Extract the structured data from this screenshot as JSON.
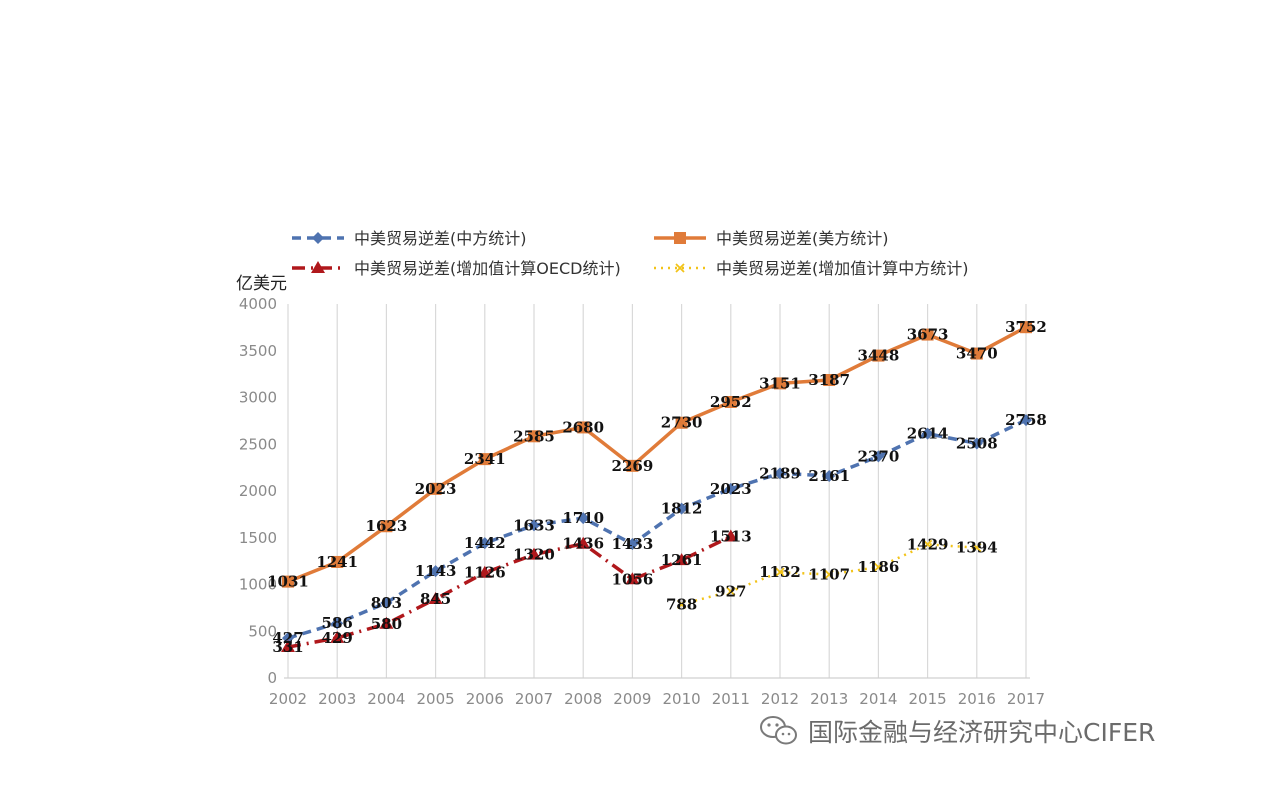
{
  "chart_data": {
    "type": "line",
    "ylabel": "亿美元",
    "ylim": [
      0,
      4000
    ],
    "yticks": [
      0,
      500,
      1000,
      1500,
      2000,
      2500,
      3000,
      3500,
      4000
    ],
    "x": [
      "2002",
      "2003",
      "2004",
      "2005",
      "2006",
      "2007",
      "2008",
      "2009",
      "2010",
      "2011",
      "2012",
      "2013",
      "2014",
      "2015",
      "2016",
      "2017"
    ],
    "grid": "vertical",
    "legend_position": "top",
    "series": [
      {
        "name": "中美贸易逆差(中方统计)",
        "color": "#4F73B0",
        "line_style": "dashed",
        "marker": "diamond",
        "values": [
          427,
          586,
          803,
          1143,
          1442,
          1633,
          1710,
          1433,
          1812,
          2023,
          2189,
          2161,
          2370,
          2614,
          2508,
          2758
        ]
      },
      {
        "name": "中美贸易逆差(美方统计)",
        "color": "#E07B39",
        "line_style": "solid",
        "marker": "square",
        "values": [
          1031,
          1241,
          1623,
          2023,
          2341,
          2585,
          2680,
          2269,
          2730,
          2952,
          3151,
          3187,
          3448,
          3673,
          3470,
          3752
        ]
      },
      {
        "name": "中美贸易逆差(增加值计算OECD统计)",
        "color": "#B0181C",
        "line_style": "dash-dot",
        "marker": "triangle",
        "values": [
          331,
          429,
          580,
          845,
          1126,
          1320,
          1436,
          1056,
          1261,
          1513,
          null,
          null,
          null,
          null,
          null,
          null
        ]
      },
      {
        "name": "中美贸易逆差(增加值计算中方统计)",
        "color": "#F2C318",
        "line_style": "dotted",
        "marker": "x",
        "values": [
          null,
          null,
          null,
          null,
          null,
          null,
          null,
          null,
          788,
          927,
          1132,
          1107,
          1186,
          1429,
          1394,
          null
        ]
      }
    ]
  },
  "watermark": {
    "icon": "wechat-icon",
    "text": "国际金融与经济研究中心CIFER"
  }
}
